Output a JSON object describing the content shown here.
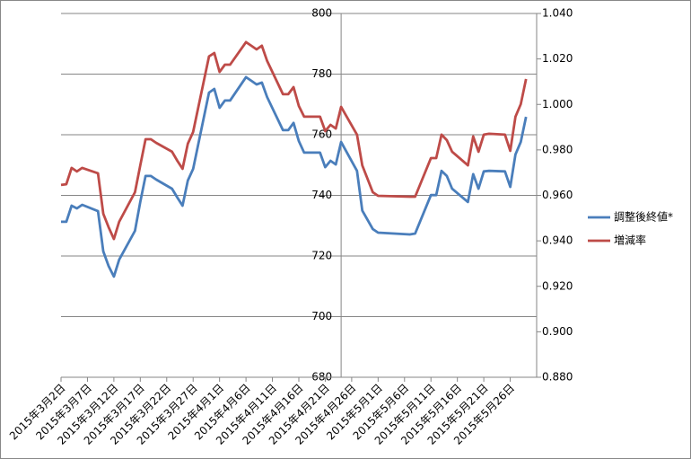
{
  "chart_data": {
    "type": "line",
    "x": [
      "2015-03-02",
      "2015-03-03",
      "2015-03-04",
      "2015-03-05",
      "2015-03-06",
      "2015-03-09",
      "2015-03-10",
      "2015-03-11",
      "2015-03-12",
      "2015-03-13",
      "2015-03-16",
      "2015-03-17",
      "2015-03-18",
      "2015-03-19",
      "2015-03-20",
      "2015-03-23",
      "2015-03-24",
      "2015-03-25",
      "2015-03-26",
      "2015-03-27",
      "2015-03-30",
      "2015-03-31",
      "2015-04-01",
      "2015-04-02",
      "2015-04-03",
      "2015-04-06",
      "2015-04-07",
      "2015-04-08",
      "2015-04-09",
      "2015-04-10",
      "2015-04-13",
      "2015-04-14",
      "2015-04-15",
      "2015-04-16",
      "2015-04-17",
      "2015-04-20",
      "2015-04-21",
      "2015-04-22",
      "2015-04-23",
      "2015-04-24",
      "2015-04-27",
      "2015-04-28",
      "2015-04-30",
      "2015-05-01",
      "2015-05-07",
      "2015-05-08",
      "2015-05-11",
      "2015-05-12",
      "2015-05-13",
      "2015-05-14",
      "2015-05-15",
      "2015-05-18",
      "2015-05-19",
      "2015-05-20",
      "2015-05-21",
      "2015-05-22",
      "2015-05-25",
      "2015-05-26",
      "2015-05-27",
      "2015-05-28",
      "2015-05-29"
    ],
    "series": [
      {
        "name": "調整後終値*",
        "color": "#4a7ebb",
        "axis": "y",
        "values": [
          731.3,
          731.3,
          736.6,
          735.7,
          736.9,
          734.8,
          721.5,
          716.7,
          713.2,
          718.8,
          728.3,
          737.8,
          746.4,
          746.4,
          745.2,
          742.2,
          739.3,
          736.6,
          744.9,
          748.7,
          773.9,
          775.1,
          768.9,
          771.3,
          771.3,
          779.0,
          777.8,
          776.6,
          777.2,
          772.4,
          761.5,
          761.5,
          763.9,
          757.9,
          754.1,
          754.1,
          749.3,
          751.4,
          750.2,
          757.6,
          748.1,
          735.0,
          728.9,
          727.7,
          727.1,
          727.4,
          740.1,
          740.1,
          748.1,
          746.4,
          742.2,
          737.8,
          747.0,
          742.2,
          747.9,
          748.1,
          747.9,
          742.8,
          753.5,
          757.6,
          765.9
        ]
      },
      {
        "name": "増減率",
        "color": "#be4b48",
        "axis": "y2",
        "values": [
          0.9646,
          0.9649,
          0.9721,
          0.9705,
          0.9721,
          0.9697,
          0.9519,
          0.946,
          0.9408,
          0.9484,
          0.9614,
          0.9732,
          0.9847,
          0.9847,
          0.9831,
          0.9792,
          0.9752,
          0.9717,
          0.9827,
          0.9879,
          1.0211,
          1.0226,
          1.0143,
          1.0175,
          1.0175,
          1.0274,
          1.0258,
          1.0242,
          1.0258,
          1.0191,
          1.0045,
          1.0045,
          1.0076,
          0.9993,
          0.9946,
          0.9946,
          0.9883,
          0.991,
          0.9894,
          0.9989,
          0.9867,
          0.9732,
          0.9614,
          0.9598,
          0.9594,
          0.9594,
          0.9764,
          0.9764,
          0.9867,
          0.9843,
          0.9792,
          0.9732,
          0.9859,
          0.9792,
          0.9867,
          0.9871,
          0.9867,
          0.9796,
          0.9946,
          1.0001,
          1.0112
        ]
      }
    ],
    "xlim": [
      "2015-03-02",
      "2015-05-31"
    ],
    "xticks": [
      {
        "value": "2015-03-02",
        "label": "2015年3月2日"
      },
      {
        "value": "2015-03-07",
        "label": "2015年3月7日"
      },
      {
        "value": "2015-03-12",
        "label": "2015年3月12日"
      },
      {
        "value": "2015-03-17",
        "label": "2015年3月17日"
      },
      {
        "value": "2015-03-22",
        "label": "2015年3月22日"
      },
      {
        "value": "2015-03-27",
        "label": "2015年3月27日"
      },
      {
        "value": "2015-04-01",
        "label": "2015年4月1日"
      },
      {
        "value": "2015-04-06",
        "label": "2015年4月6日"
      },
      {
        "value": "2015-04-11",
        "label": "2015年4月11日"
      },
      {
        "value": "2015-04-16",
        "label": "2015年4月16日"
      },
      {
        "value": "2015-04-21",
        "label": "2015年4月21日"
      },
      {
        "value": "2015-04-26",
        "label": "2015年4月26日"
      },
      {
        "value": "2015-05-01",
        "label": "2015年5月1日"
      },
      {
        "value": "2015-05-06",
        "label": "2015年5月6日"
      },
      {
        "value": "2015-05-11",
        "label": "2015年5月11日"
      },
      {
        "value": "2015-05-16",
        "label": "2015年5月16日"
      },
      {
        "value": "2015-05-21",
        "label": "2015年5月21日"
      },
      {
        "value": "2015-05-26",
        "label": "2015年5月26日"
      }
    ],
    "ylim": [
      680,
      800
    ],
    "yticks": [
      680,
      700,
      720,
      740,
      760,
      780,
      800
    ],
    "y2lim": [
      0.88,
      1.04
    ],
    "y2ticks": [
      {
        "value": 0.88,
        "label": "0.880"
      },
      {
        "value": 0.9,
        "label": "0.900"
      },
      {
        "value": 0.92,
        "label": "0.920"
      },
      {
        "value": 0.94,
        "label": "0.940"
      },
      {
        "value": 0.96,
        "label": "0.960"
      },
      {
        "value": 0.98,
        "label": "0.980"
      },
      {
        "value": 1.0,
        "label": "1.000"
      },
      {
        "value": 1.02,
        "label": "1.020"
      },
      {
        "value": 1.04,
        "label": "1.040"
      }
    ],
    "y_axis_at": "2015-04-24",
    "grid": true,
    "legend": "right"
  }
}
